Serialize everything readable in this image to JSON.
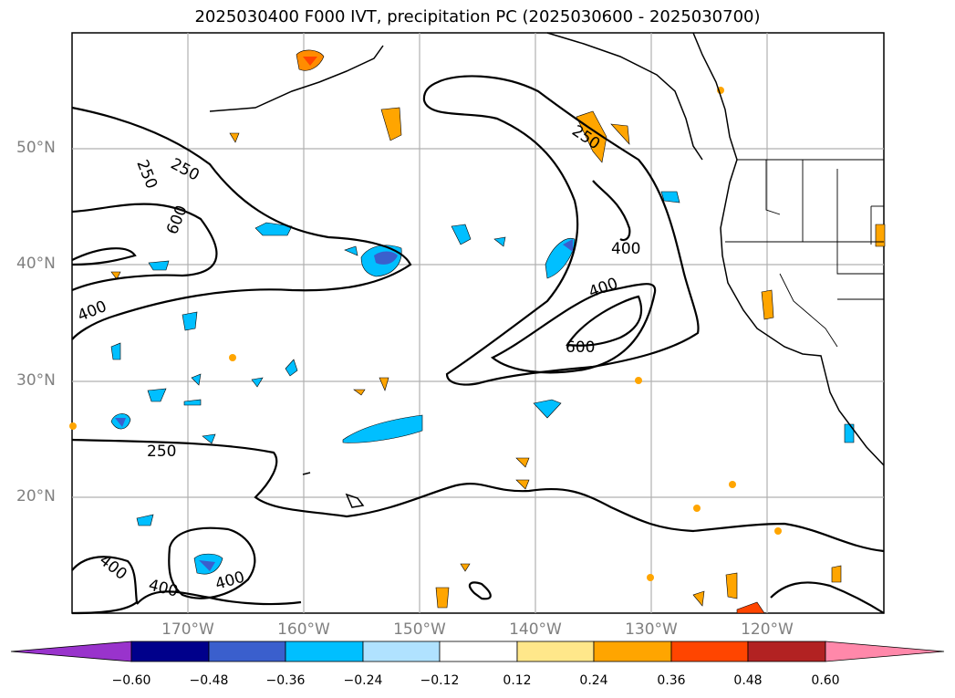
{
  "title": "2025030400 F000 IVT, precipitation PC (2025030600 - 2025030700)",
  "map": {
    "lat_labels": [
      "50°N",
      "40°N",
      "30°N",
      "20°N"
    ],
    "lon_labels": [
      "170°W",
      "160°W",
      "150°W",
      "140°W",
      "130°W",
      "120°W"
    ],
    "ivt_contour_labels": [
      "250",
      "250",
      "600",
      "400",
      "250",
      "400",
      "600",
      "250",
      "400",
      "400",
      "400",
      "400"
    ]
  },
  "colorbar": {
    "ticks": [
      "−0.60",
      "−0.48",
      "−0.36",
      "−0.24",
      "−0.12",
      "0.12",
      "0.24",
      "0.36",
      "0.48",
      "0.60"
    ],
    "colors": [
      "#9933cc",
      "#00008b",
      "#3a5fcd",
      "#00bfff",
      "#b0e2ff",
      "#ffffff",
      "#ffe78a",
      "#ffa500",
      "#ff4500",
      "#b22222",
      "#ff88aa"
    ]
  }
}
